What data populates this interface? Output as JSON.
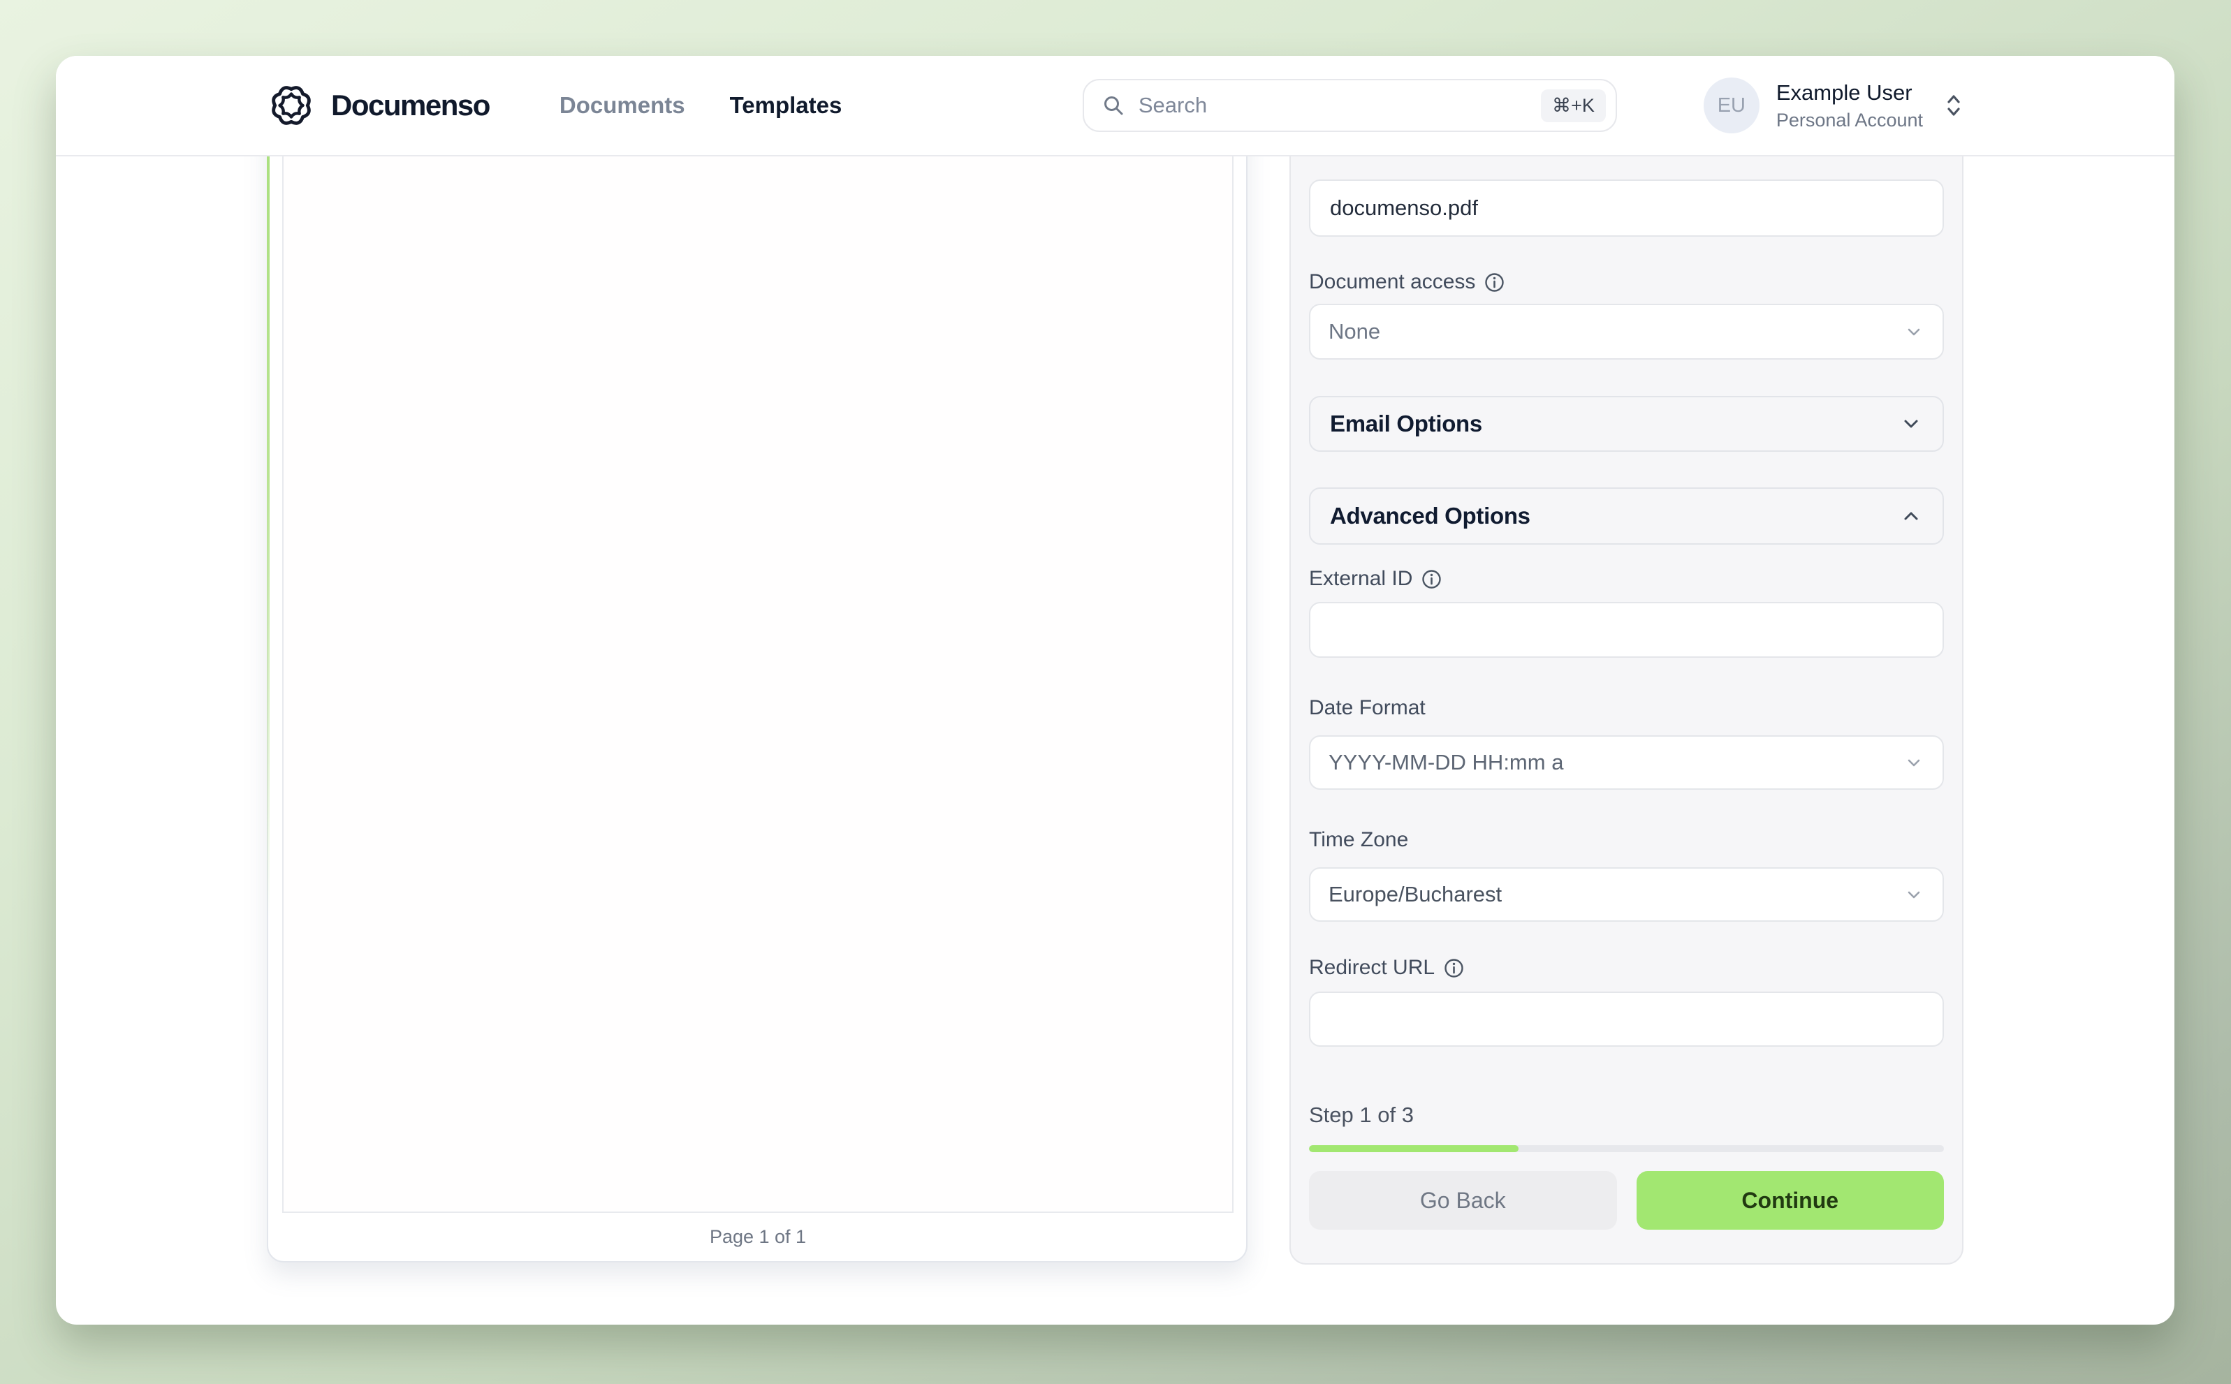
{
  "header": {
    "brand": "Documenso",
    "nav": [
      {
        "label": "Documents"
      },
      {
        "label": "Templates"
      }
    ],
    "search": {
      "placeholder": "Search",
      "shortcut": "⌘+K"
    },
    "user": {
      "initials": "EU",
      "name": "Example User",
      "account": "Personal Account"
    }
  },
  "document_viewer": {
    "page_indicator": "Page 1 of 1"
  },
  "form": {
    "title_value": "documenso.pdf",
    "document_access_label": "Document access",
    "document_access_value": "None",
    "email_options_label": "Email Options",
    "advanced_options_label": "Advanced Options",
    "external_id_label": "External ID",
    "external_id_value": "",
    "date_format_label": "Date Format",
    "date_format_value": "YYYY-MM-DD HH:mm a",
    "time_zone_label": "Time Zone",
    "time_zone_value": "Europe/Bucharest",
    "redirect_url_label": "Redirect URL",
    "redirect_url_value": "",
    "step_text": "Step 1 of 3",
    "progress_percent": 33,
    "go_back_label": "Go Back",
    "continue_label": "Continue"
  },
  "colors": {
    "primary_green": "#a2e771",
    "accent_border_green": "#abe07f",
    "background_top": "#e9f3e1",
    "background_bottom": "#a6b49f",
    "panel_bg": "#f6f6f8"
  }
}
